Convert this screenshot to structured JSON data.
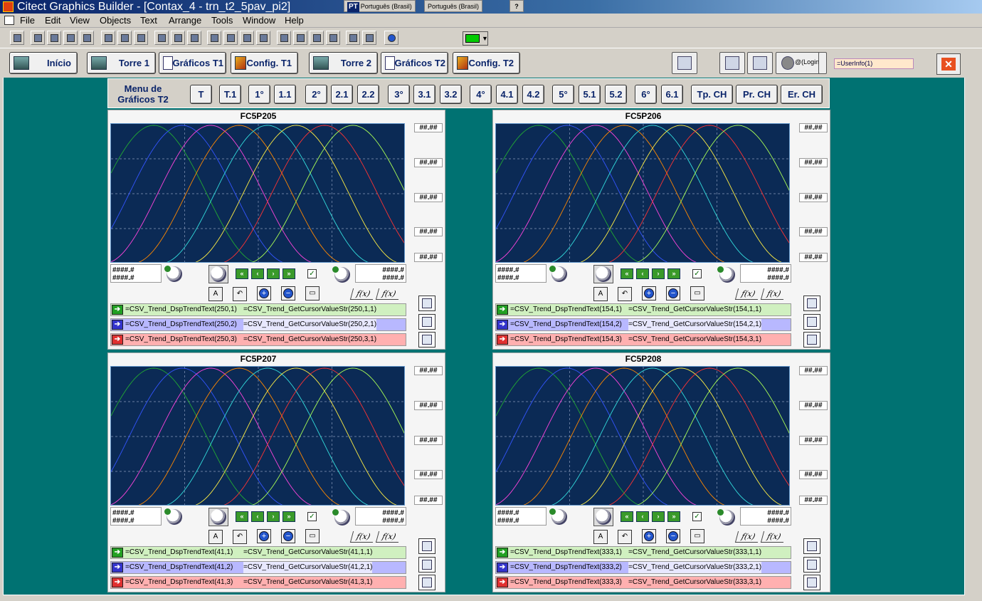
{
  "window": {
    "title": "Citect Graphics Builder - [Contax_4 - trn_t2_5pav_pi2]",
    "lang1_code": "PT",
    "lang1": "Português (Brasil)",
    "lang2": "Português (Brasil)",
    "help_glyph": "?"
  },
  "menu": [
    "File",
    "Edit",
    "View",
    "Objects",
    "Text",
    "Arrange",
    "Tools",
    "Window",
    "Help"
  ],
  "nav": {
    "inicio": "Início",
    "torre1": "Torre 1",
    "graficos_t1": "Gráficos T1",
    "config_t1": "Config. T1",
    "torre2": "Torre 2",
    "graficos_t2": "Gráficos T2",
    "config_t2": "Config. T2",
    "login": "@(Login)",
    "userinfo": "=UserInfo(1)",
    "close": "✕"
  },
  "menu_graficos": {
    "label": "Menu de Gráficos T2",
    "buttons": [
      "T",
      "T.1",
      "1°",
      "1.1",
      "2°",
      "2.1",
      "2.2",
      "3°",
      "3.1",
      "3.2",
      "4°",
      "4.1",
      "4.2",
      "5°",
      "5.1",
      "5.2",
      "6°",
      "6.1",
      "Tp. CH",
      "Pr. CH",
      "Er. CH"
    ]
  },
  "common": {
    "ylabel": "##.##",
    "cursor1": "####.#",
    "cursor2": "####.#",
    "fx": "f(x)"
  },
  "panels": [
    {
      "title": "FC5P205",
      "pens": [
        {
          "name": "=CSV_Trend_DspTrendText(250,1)",
          "value": "=CSV_Trend_GetCursorValueStr(250,1,1)"
        },
        {
          "name": "=CSV_Trend_DspTrendText(250,2)",
          "value": "=CSV_Trend_GetCursorValueStr(250,2,1)"
        },
        {
          "name": "=CSV_Trend_DspTrendText(250,3)",
          "value": "=CSV_Trend_GetCursorValueStr(250,3,1)"
        }
      ]
    },
    {
      "title": "FC5P206",
      "pens": [
        {
          "name": "=CSV_Trend_DspTrendText(154,1)",
          "value": "=CSV_Trend_GetCursorValueStr(154,1,1)"
        },
        {
          "name": "=CSV_Trend_DspTrendText(154,2)",
          "value": "=CSV_Trend_GetCursorValueStr(154,2,1)"
        },
        {
          "name": "=CSV_Trend_DspTrendText(154,3)",
          "value": "=CSV_Trend_GetCursorValueStr(154,3,1)"
        }
      ]
    },
    {
      "title": "FC5P207",
      "pens": [
        {
          "name": "=CSV_Trend_DspTrendText(41,1)",
          "value": "=CSV_Trend_GetCursorValueStr(41,1,1)"
        },
        {
          "name": "=CSV_Trend_DspTrendText(41,2)",
          "value": "=CSV_Trend_GetCursorValueStr(41,2,1)"
        },
        {
          "name": "=CSV_Trend_DspTrendText(41,3)",
          "value": "=CSV_Trend_GetCursorValueStr(41,3,1)"
        }
      ]
    },
    {
      "title": "FC5P208",
      "pens": [
        {
          "name": "=CSV_Trend_DspTrendText(333,1)",
          "value": "=CSV_Trend_GetCursorValueStr(333,1,1)"
        },
        {
          "name": "=CSV_Trend_DspTrendText(333,2)",
          "value": "=CSV_Trend_GetCursorValueStr(333,2,1)"
        },
        {
          "name": "=CSV_Trend_DspTrendText(333,3)",
          "value": "=CSV_Trend_GetCursorValueStr(333,3,1)"
        }
      ]
    }
  ],
  "colors": {
    "canvas": "#007272",
    "plot_bg": "#0b2a55",
    "curves": [
      "#22aa33",
      "#3355ff",
      "#ff44dd",
      "#ff8800",
      "#33dddd",
      "#ffee44",
      "#ff3333",
      "#aaff55"
    ]
  }
}
